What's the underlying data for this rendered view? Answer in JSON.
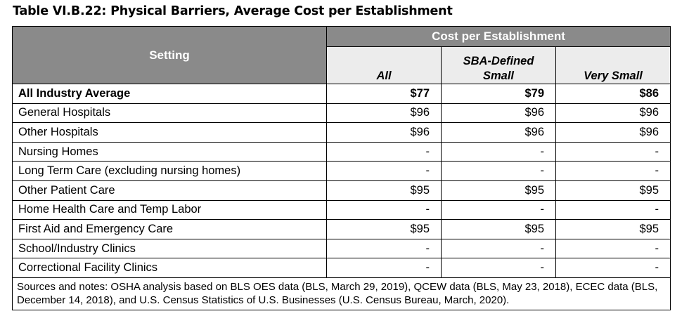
{
  "caption": "Table VI.B.22: Physical Barriers, Average Cost per Establishment",
  "header": {
    "setting": "Setting",
    "group": "Cost per Establishment",
    "columns": [
      "All",
      "SBA-Defined\nSmall",
      "Very Small"
    ]
  },
  "rows": [
    {
      "setting": "All Industry Average",
      "all": "$77",
      "sba_small": "$79",
      "very_small": "$86"
    },
    {
      "setting": "General Hospitals",
      "all": "$96",
      "sba_small": "$96",
      "very_small": "$96"
    },
    {
      "setting": "Other Hospitals",
      "all": "$96",
      "sba_small": "$96",
      "very_small": "$96"
    },
    {
      "setting": "Nursing Homes",
      "all": "-",
      "sba_small": "-",
      "very_small": "-"
    },
    {
      "setting": "Long Term Care (excluding nursing homes)",
      "all": "-",
      "sba_small": "-",
      "very_small": "-"
    },
    {
      "setting": "Other Patient Care",
      "all": "$95",
      "sba_small": "$95",
      "very_small": "$95"
    },
    {
      "setting": "Home Health Care and Temp Labor",
      "all": "-",
      "sba_small": "-",
      "very_small": "-"
    },
    {
      "setting": "First Aid and Emergency Care",
      "all": "$95",
      "sba_small": "$95",
      "very_small": "$95"
    },
    {
      "setting": "School/Industry Clinics",
      "all": "-",
      "sba_small": "-",
      "very_small": "-"
    },
    {
      "setting": "Correctional Facility Clinics",
      "all": "-",
      "sba_small": "-",
      "very_small": "-"
    }
  ],
  "notes": "Sources and notes: OSHA analysis based on BLS OES data (BLS, March 29, 2019), QCEW data (BLS, May 23, 2018), ECEC data (BLS, December 14, 2018), and U.S. Census Statistics of U.S. Businesses (U.S. Census Bureau, March, 2020)."
}
